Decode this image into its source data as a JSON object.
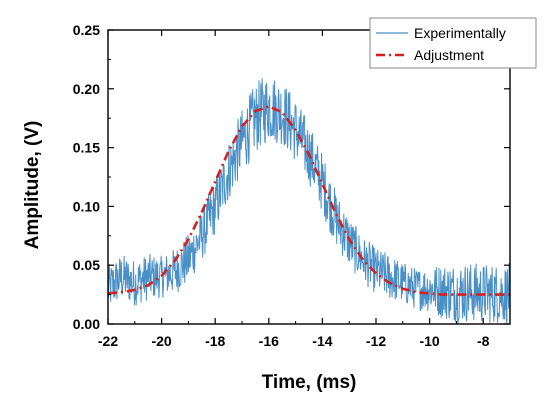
{
  "chart_data": {
    "type": "line",
    "xlabel": "Time, (ms)",
    "ylabel": "Amplitude, (V)",
    "xlim": [
      -22,
      -7
    ],
    "ylim": [
      0.0,
      0.25
    ],
    "x_ticks": [
      -22,
      -20,
      -18,
      -16,
      -14,
      -12,
      -10,
      -8
    ],
    "x_tick_labels": [
      "-22",
      "-20",
      "-18",
      "-16",
      "-14",
      "-12",
      "-10",
      "-8"
    ],
    "y_ticks": [
      0.0,
      0.05,
      0.1,
      0.15,
      0.2,
      0.25
    ],
    "y_tick_labels": [
      "0.00",
      "0.05",
      "0.10",
      "0.15",
      "0.20",
      "0.25"
    ],
    "grid": false,
    "legend_position": "top-right",
    "series": [
      {
        "name": "Experimentally",
        "style": "solid",
        "color": "#4a90c8",
        "x": [
          -22.0,
          -21.5,
          -21.0,
          -20.5,
          -20.0,
          -19.5,
          -19.0,
          -18.5,
          -18.0,
          -17.5,
          -17.0,
          -16.5,
          -16.0,
          -15.5,
          -15.0,
          -14.5,
          -14.0,
          -13.5,
          -13.0,
          -12.5,
          -12.0,
          -11.5,
          -11.0,
          -10.5,
          -10.0,
          -9.5,
          -9.0,
          -8.5,
          -8.0,
          -7.5,
          -7.0
        ],
        "y": [
          0.03,
          0.04,
          0.035,
          0.04,
          0.04,
          0.045,
          0.055,
          0.075,
          0.1,
          0.13,
          0.155,
          0.175,
          0.185,
          0.18,
          0.165,
          0.145,
          0.12,
          0.09,
          0.07,
          0.055,
          0.045,
          0.04,
          0.035,
          0.03,
          0.03,
          0.028,
          0.027,
          0.027,
          0.026,
          0.026,
          0.026
        ],
        "noise": [
          0.02,
          0.02,
          0.02,
          0.02,
          0.018,
          0.02,
          0.022,
          0.022,
          0.024,
          0.026,
          0.028,
          0.03,
          0.03,
          0.028,
          0.028,
          0.026,
          0.026,
          0.024,
          0.022,
          0.02,
          0.02,
          0.02,
          0.018,
          0.018,
          0.02,
          0.024,
          0.026,
          0.026,
          0.026,
          0.026,
          0.026
        ]
      },
      {
        "name": "Adjustment",
        "style": "dash-dot",
        "color": "#d61f1f",
        "x": [
          -22.0,
          -21.5,
          -21.0,
          -20.5,
          -20.0,
          -19.5,
          -19.0,
          -18.5,
          -18.0,
          -17.5,
          -17.0,
          -16.5,
          -16.0,
          -15.5,
          -15.0,
          -14.5,
          -14.0,
          -13.5,
          -13.0,
          -12.5,
          -12.0,
          -11.5,
          -11.0,
          -10.5,
          -10.0,
          -9.5,
          -9.0,
          -8.5,
          -8.0,
          -7.5,
          -7.0
        ],
        "y": [
          0.026,
          0.027,
          0.029,
          0.033,
          0.041,
          0.054,
          0.072,
          0.095,
          0.121,
          0.147,
          0.168,
          0.181,
          0.185,
          0.18,
          0.165,
          0.144,
          0.119,
          0.094,
          0.072,
          0.055,
          0.043,
          0.035,
          0.03,
          0.027,
          0.026,
          0.025,
          0.025,
          0.025,
          0.025,
          0.025,
          0.025
        ]
      }
    ]
  }
}
